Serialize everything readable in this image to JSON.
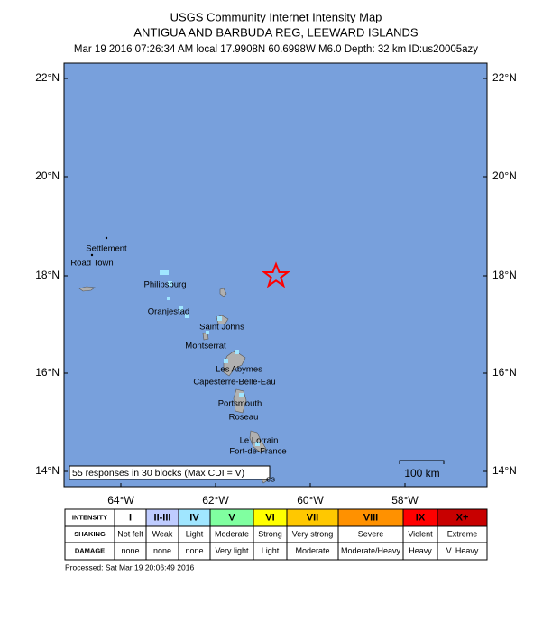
{
  "header": {
    "title": "USGS Community Internet Intensity Map",
    "region": "ANTIGUA AND BARBUDA REG, LEEWARD ISLANDS",
    "details": "Mar 19 2016 07:26:34 AM local 17.9908N 60.6998W M6.0 Depth: 32 km ID:us20005azy"
  },
  "map": {
    "lat_labels": [
      "22°N",
      "20°N",
      "18°N",
      "16°N",
      "14°N"
    ],
    "lon_labels": [
      "64°W",
      "62°W",
      "60°W",
      "58°W"
    ],
    "places": [
      "Settlement",
      "Road Town",
      "Philipsburg",
      "Oranjestad",
      "Saint Johns",
      "Montserrat",
      "Les Abymes",
      "Capesterre-Belle-Eau",
      "Portsmouth",
      "Roseau",
      "Le Lorrain",
      "Fort-de-France",
      "es"
    ],
    "responses": "55 responses in 30 blocks (Max CDI = V)",
    "scale": "100 km"
  },
  "legend": {
    "row_labels": [
      "INTENSITY",
      "SHAKING",
      "DAMAGE"
    ],
    "columns": [
      {
        "intensity": "I",
        "shaking": "Not felt",
        "damage": "none",
        "color": "#ffffff"
      },
      {
        "intensity": "II-III",
        "shaking": "Weak",
        "damage": "none",
        "color": "#bfccff"
      },
      {
        "intensity": "IV",
        "shaking": "Light",
        "damage": "none",
        "color": "#a0e6ff"
      },
      {
        "intensity": "V",
        "shaking": "Moderate",
        "damage": "Very light",
        "color": "#80ffa0"
      },
      {
        "intensity": "VI",
        "shaking": "Strong",
        "damage": "Light",
        "color": "#ffff00"
      },
      {
        "intensity": "VII",
        "shaking": "Very strong",
        "damage": "Moderate",
        "color": "#ffc800"
      },
      {
        "intensity": "VIII",
        "shaking": "Severe",
        "damage": "Moderate/Heavy",
        "color": "#ff9100"
      },
      {
        "intensity": "IX",
        "shaking": "Violent",
        "damage": "Heavy",
        "color": "#ff0000"
      },
      {
        "intensity": "X+",
        "shaking": "Extreme",
        "damage": "V. Heavy",
        "color": "#c80000"
      }
    ]
  },
  "footer": "Processed: Sat Mar 19 20:06:49 2016"
}
